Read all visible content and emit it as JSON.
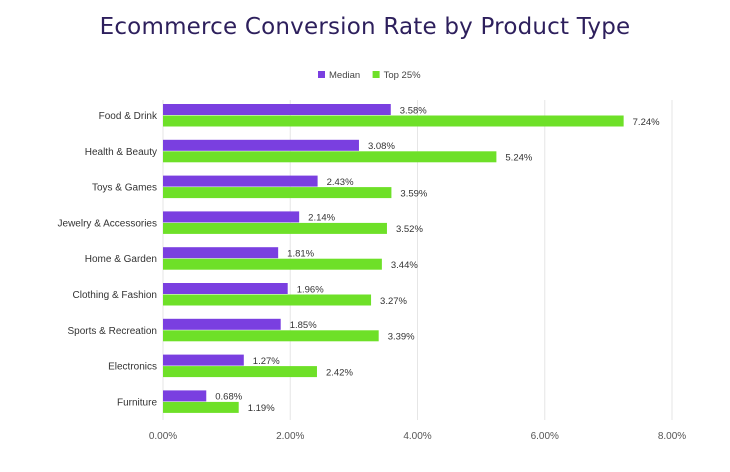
{
  "chart_data": {
    "type": "bar",
    "orientation": "horizontal",
    "title": "Ecommerce Conversion Rate by Product Type",
    "xlabel": "",
    "ylabel": "",
    "categories": [
      "Food & Drink",
      "Health & Beauty",
      "Toys & Games",
      "Jewelry & Accessories",
      "Home & Garden",
      "Clothing & Fashion",
      "Sports & Recreation",
      "Electronics",
      "Furniture"
    ],
    "series": [
      {
        "name": "Median",
        "color": "#7a3fe0",
        "values": [
          3.58,
          3.08,
          2.43,
          2.14,
          1.81,
          1.96,
          1.85,
          1.27,
          0.68
        ],
        "labels": [
          "3.58%",
          "3.08%",
          "2.43%",
          "2.14%",
          "1.81%",
          "1.96%",
          "1.85%",
          "1.27%",
          "0.68%"
        ]
      },
      {
        "name": "Top 25%",
        "color": "#6ee028",
        "values": [
          7.24,
          5.24,
          3.59,
          3.52,
          3.44,
          3.27,
          3.39,
          2.42,
          1.19
        ],
        "labels": [
          "7.24%",
          "5.24%",
          "3.59%",
          "3.52%",
          "3.44%",
          "3.27%",
          "3.39%",
          "2.42%",
          "1.19%"
        ]
      }
    ],
    "xlim": [
      0,
      8
    ],
    "xticks": [
      0,
      2,
      4,
      6,
      8
    ],
    "xtick_labels": [
      "0.00%",
      "2.00%",
      "4.00%",
      "6.00%",
      "8.00%"
    ],
    "grid": true,
    "legend_position": "top-center"
  }
}
